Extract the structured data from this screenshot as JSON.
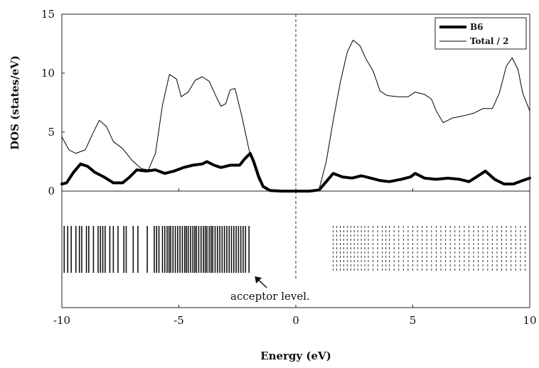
{
  "chart_data": {
    "type": "line",
    "xlabel": "Energy (eV)",
    "ylabel": "DOS (states/eV)",
    "xlim": [
      -10,
      10
    ],
    "ylim": [
      0,
      15
    ],
    "x_ticks": [
      -10,
      -5,
      0,
      5,
      10
    ],
    "x_tick_labels": [
      "-10",
      "-5",
      "0",
      "5",
      "10"
    ],
    "y_ticks": [
      0,
      5,
      10,
      15
    ],
    "y_tick_labels": [
      "0",
      "5",
      "10",
      "15"
    ],
    "grid": false,
    "legend_position": "top-right",
    "fermi_level_x": 0,
    "series": [
      {
        "name": "B6",
        "style": "thick",
        "color": "#000000",
        "points": [
          [
            -10,
            0.6
          ],
          [
            -9.8,
            0.7
          ],
          [
            -9.5,
            1.6
          ],
          [
            -9.2,
            2.3
          ],
          [
            -8.9,
            2.1
          ],
          [
            -8.6,
            1.6
          ],
          [
            -8.2,
            1.2
          ],
          [
            -7.8,
            0.7
          ],
          [
            -7.4,
            0.7
          ],
          [
            -7.1,
            1.2
          ],
          [
            -6.8,
            1.8
          ],
          [
            -6.4,
            1.7
          ],
          [
            -6.0,
            1.8
          ],
          [
            -5.6,
            1.5
          ],
          [
            -5.2,
            1.7
          ],
          [
            -4.8,
            2.0
          ],
          [
            -4.4,
            2.2
          ],
          [
            -4.0,
            2.3
          ],
          [
            -3.8,
            2.5
          ],
          [
            -3.5,
            2.2
          ],
          [
            -3.2,
            2.0
          ],
          [
            -2.8,
            2.2
          ],
          [
            -2.4,
            2.2
          ],
          [
            -2.2,
            2.7
          ],
          [
            -1.95,
            3.2
          ],
          [
            -1.8,
            2.5
          ],
          [
            -1.6,
            1.3
          ],
          [
            -1.4,
            0.4
          ],
          [
            -1.1,
            0.05
          ],
          [
            -0.6,
            0.0
          ],
          [
            0,
            0.0
          ],
          [
            0.6,
            0.0
          ],
          [
            1.0,
            0.1
          ],
          [
            1.3,
            0.8
          ],
          [
            1.6,
            1.5
          ],
          [
            2.0,
            1.2
          ],
          [
            2.4,
            1.1
          ],
          [
            2.8,
            1.3
          ],
          [
            3.2,
            1.1
          ],
          [
            3.6,
            0.9
          ],
          [
            4.0,
            0.8
          ],
          [
            4.5,
            1.0
          ],
          [
            4.9,
            1.2
          ],
          [
            5.1,
            1.5
          ],
          [
            5.5,
            1.1
          ],
          [
            6.0,
            1.0
          ],
          [
            6.5,
            1.1
          ],
          [
            7.0,
            1.0
          ],
          [
            7.4,
            0.8
          ],
          [
            7.8,
            1.3
          ],
          [
            8.1,
            1.7
          ],
          [
            8.5,
            1.0
          ],
          [
            8.9,
            0.6
          ],
          [
            9.3,
            0.6
          ],
          [
            9.7,
            0.9
          ],
          [
            10,
            1.1
          ]
        ]
      },
      {
        "name": "Total / 2",
        "style": "thin",
        "color": "#000000",
        "points": [
          [
            -10,
            4.6
          ],
          [
            -9.7,
            3.5
          ],
          [
            -9.4,
            3.2
          ],
          [
            -9.0,
            3.5
          ],
          [
            -8.7,
            4.8
          ],
          [
            -8.4,
            6.0
          ],
          [
            -8.1,
            5.5
          ],
          [
            -7.8,
            4.2
          ],
          [
            -7.4,
            3.6
          ],
          [
            -7.0,
            2.6
          ],
          [
            -6.6,
            1.9
          ],
          [
            -6.3,
            1.8
          ],
          [
            -6.0,
            3.2
          ],
          [
            -5.7,
            7.3
          ],
          [
            -5.4,
            9.9
          ],
          [
            -5.1,
            9.5
          ],
          [
            -4.9,
            8.0
          ],
          [
            -4.6,
            8.4
          ],
          [
            -4.3,
            9.4
          ],
          [
            -4.0,
            9.7
          ],
          [
            -3.7,
            9.3
          ],
          [
            -3.4,
            8.0
          ],
          [
            -3.2,
            7.2
          ],
          [
            -3.0,
            7.4
          ],
          [
            -2.8,
            8.6
          ],
          [
            -2.6,
            8.7
          ],
          [
            -2.3,
            6.3
          ],
          [
            -2.0,
            3.5
          ],
          [
            -1.8,
            2.2
          ],
          [
            -1.6,
            1.0
          ],
          [
            -1.4,
            0.3
          ],
          [
            -1.2,
            0.05
          ],
          [
            -0.8,
            0.0
          ],
          [
            0,
            0.0
          ],
          [
            0.8,
            0.0
          ],
          [
            1.0,
            0.2
          ],
          [
            1.3,
            2.5
          ],
          [
            1.6,
            6.0
          ],
          [
            1.9,
            9.2
          ],
          [
            2.2,
            11.8
          ],
          [
            2.45,
            12.8
          ],
          [
            2.75,
            12.3
          ],
          [
            3.0,
            11.2
          ],
          [
            3.3,
            10.2
          ],
          [
            3.6,
            8.5
          ],
          [
            3.9,
            8.1
          ],
          [
            4.4,
            8.0
          ],
          [
            4.8,
            8.0
          ],
          [
            5.1,
            8.4
          ],
          [
            5.5,
            8.2
          ],
          [
            5.8,
            7.8
          ],
          [
            6.0,
            6.8
          ],
          [
            6.3,
            5.8
          ],
          [
            6.7,
            6.2
          ],
          [
            7.2,
            6.4
          ],
          [
            7.6,
            6.6
          ],
          [
            8.0,
            7.0
          ],
          [
            8.4,
            7.0
          ],
          [
            8.7,
            8.3
          ],
          [
            9.0,
            10.6
          ],
          [
            9.25,
            11.3
          ],
          [
            9.5,
            10.3
          ],
          [
            9.7,
            8.3
          ],
          [
            10,
            6.8
          ]
        ]
      }
    ],
    "energy_levels": {
      "occupied": [
        -9.9,
        -9.75,
        -9.6,
        -9.4,
        -9.25,
        -9.15,
        -8.95,
        -8.85,
        -8.65,
        -8.45,
        -8.35,
        -8.25,
        -8.15,
        -7.95,
        -7.8,
        -7.6,
        -7.35,
        -7.25,
        -6.95,
        -6.75,
        -6.35,
        -6.05,
        -5.95,
        -5.85,
        -5.7,
        -5.6,
        -5.5,
        -5.42,
        -5.35,
        -5.25,
        -5.15,
        -5.05,
        -4.95,
        -4.85,
        -4.75,
        -4.68,
        -4.6,
        -4.5,
        -4.4,
        -4.32,
        -4.25,
        -4.15,
        -4.05,
        -3.95,
        -3.87,
        -3.8,
        -3.7,
        -3.62,
        -3.55,
        -3.45,
        -3.35,
        -3.25,
        -3.15,
        -3.05,
        -2.95,
        -2.85,
        -2.75,
        -2.65,
        -2.55,
        -2.45,
        -2.35,
        -2.25,
        -2.15,
        -2.0
      ],
      "unoccupied": [
        1.6,
        1.75,
        1.9,
        2.05,
        2.2,
        2.35,
        2.5,
        2.65,
        2.8,
        2.95,
        3.1,
        3.3,
        3.5,
        3.7,
        3.85,
        4.0,
        4.2,
        4.4,
        4.6,
        4.8,
        5.0,
        5.2,
        5.4,
        5.6,
        5.8,
        6.0,
        6.2,
        6.4,
        6.6,
        6.8,
        7.0,
        7.2,
        7.4,
        7.6,
        7.8,
        8.0,
        8.2,
        8.4,
        8.6,
        8.8,
        9.0,
        9.2,
        9.4,
        9.6,
        9.8
      ]
    },
    "annotation": {
      "text": "acceptor level.",
      "points_to_x": -2.0
    }
  }
}
